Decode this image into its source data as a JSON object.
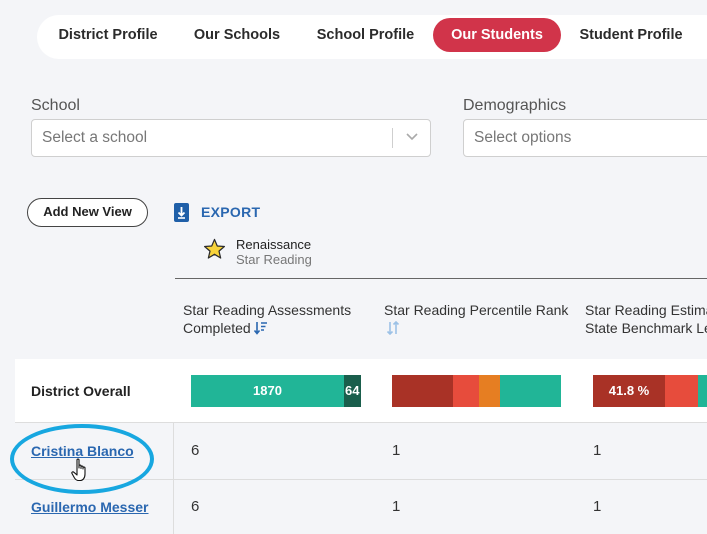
{
  "nav": {
    "tabs": [
      {
        "label": "District Profile"
      },
      {
        "label": "Our Schools"
      },
      {
        "label": "School Profile"
      },
      {
        "label": "Our Students",
        "active": true
      },
      {
        "label": "Student Profile"
      }
    ]
  },
  "filters": {
    "school": {
      "label": "School",
      "placeholder": "Select a school"
    },
    "demographics": {
      "label": "Demographics",
      "placeholder": "Select options"
    }
  },
  "toolbar": {
    "add_view_label": "Add New View",
    "export_label": "EXPORT"
  },
  "assessment": {
    "brand_name": "Renaissance",
    "product_name": "Star Reading"
  },
  "table": {
    "columns": [
      {
        "line1": "Star Reading Assessments",
        "line2": "Completed"
      },
      {
        "line1": "Star Reading Percentile Rank",
        "line2": ""
      },
      {
        "line1": "Star Reading Estima",
        "line2": "State Benchmark Le"
      }
    ],
    "overall": {
      "label": "District Overall",
      "col1_segments": [
        {
          "label": "1870",
          "color": "#21b597"
        },
        {
          "label": "64",
          "color": "#1a5e4c"
        }
      ],
      "col3_first_label": "41.8 %"
    },
    "rows": [
      {
        "name": "Cristina Blanco",
        "col1": "6",
        "col2": "1",
        "col3": "1"
      },
      {
        "name": "Guillermo Messer",
        "col1": "6",
        "col2": "1",
        "col3": "1"
      }
    ]
  },
  "colors": {
    "accent": "#d1344a",
    "link": "#2a67b0",
    "highlight": "#17a7e0",
    "dark_red": "#a93226",
    "red": "#e74c3c",
    "orange": "#e67e22",
    "teal": "#21b597",
    "dark_teal": "#1a5e4c"
  }
}
